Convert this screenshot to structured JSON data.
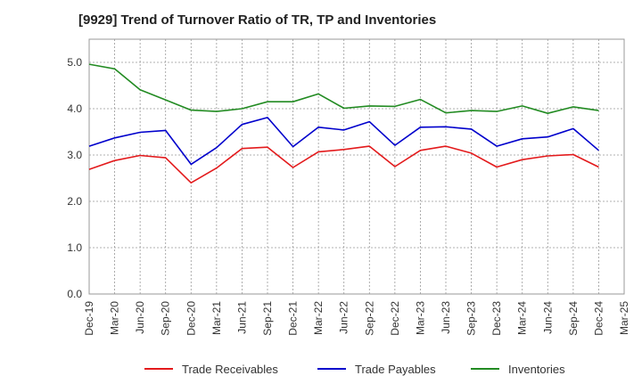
{
  "chart_data": {
    "type": "line",
    "title": "[9929]  Trend of Turnover Ratio of TR, TP and Inventories",
    "xlabel": "",
    "ylabel": "",
    "ylim": [
      0,
      5.5
    ],
    "yticks": [
      "0.0",
      "1.0",
      "2.0",
      "3.0",
      "4.0",
      "5.0"
    ],
    "ytick_values": [
      0,
      1,
      2,
      3,
      4,
      5
    ],
    "x_tick_labels": [
      "Dec-19",
      "Mar-20",
      "Jun-20",
      "Sep-20",
      "Dec-20",
      "Mar-21",
      "Jun-21",
      "Sep-21",
      "Dec-21",
      "Mar-22",
      "Jun-22",
      "Sep-22",
      "Dec-22",
      "Mar-23",
      "Jun-23",
      "Sep-23",
      "Dec-23",
      "Mar-24",
      "Jun-24",
      "Sep-24",
      "Dec-24",
      "Mar-25"
    ],
    "x": [
      "Dec-19",
      "Mar-20",
      "Jun-20",
      "Sep-20",
      "Dec-20",
      "Mar-21",
      "Jun-21",
      "Sep-21",
      "Dec-21",
      "Mar-22",
      "Jun-22",
      "Sep-22",
      "Dec-22",
      "Mar-23",
      "Jun-23",
      "Sep-23",
      "Dec-23",
      "Mar-24",
      "Jun-24",
      "Sep-24",
      "Dec-24"
    ],
    "grid": true,
    "legend_position": "bottom",
    "series": [
      {
        "name": "Trade Receivables",
        "color": "#e31a1c",
        "values": [
          2.69,
          2.88,
          2.99,
          2.94,
          2.4,
          2.72,
          3.14,
          3.17,
          2.73,
          3.07,
          3.12,
          3.19,
          2.75,
          3.1,
          3.19,
          3.04,
          2.74,
          2.9,
          2.98,
          3.01,
          2.74
        ]
      },
      {
        "name": "Trade Payables",
        "color": "#0000cc",
        "values": [
          3.19,
          3.37,
          3.49,
          3.53,
          2.8,
          3.16,
          3.66,
          3.81,
          3.18,
          3.6,
          3.54,
          3.72,
          3.21,
          3.6,
          3.61,
          3.56,
          3.19,
          3.35,
          3.39,
          3.57,
          3.1
        ]
      },
      {
        "name": "Inventories",
        "color": "#228b22",
        "values": [
          4.96,
          4.86,
          4.41,
          4.19,
          3.97,
          3.94,
          4.0,
          4.15,
          4.15,
          4.32,
          4.01,
          4.06,
          4.05,
          4.2,
          3.91,
          3.96,
          3.94,
          4.06,
          3.9,
          4.04,
          3.96
        ]
      }
    ]
  }
}
